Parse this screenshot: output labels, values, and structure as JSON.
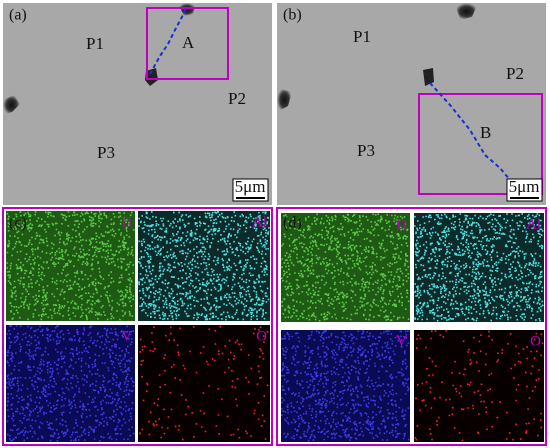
{
  "panels": {
    "a": {
      "label": "(a)",
      "regions": [
        "P1",
        "P2",
        "P3"
      ],
      "line_label": "A",
      "scale_bar": "5μm"
    },
    "b": {
      "label": "(b)",
      "regions": [
        "P1",
        "P2",
        "P3"
      ],
      "line_label": "B",
      "scale_bar": "5μm"
    }
  },
  "maps": {
    "c": {
      "label": "(c)",
      "elements": [
        "Ti",
        "Al",
        "V",
        "O"
      ]
    },
    "d": {
      "label": "(d)",
      "elements": [
        "Ti",
        "Al",
        "V",
        "O"
      ]
    }
  }
}
